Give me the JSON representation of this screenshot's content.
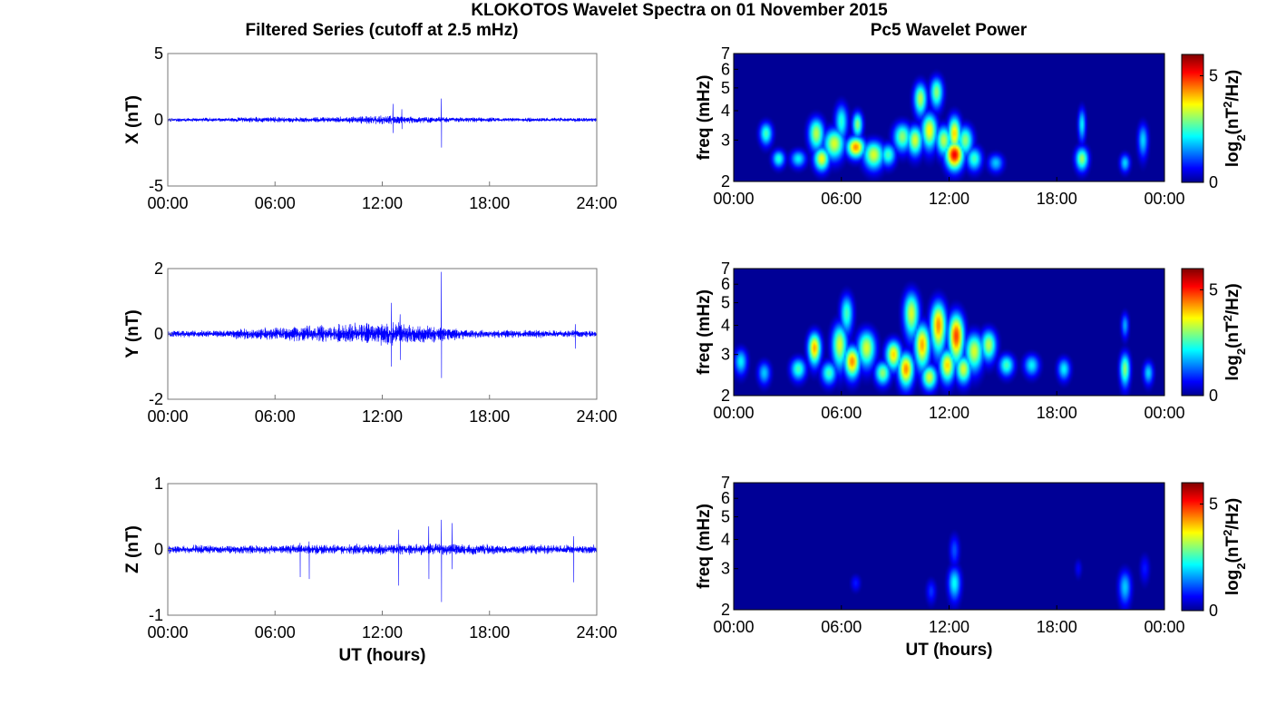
{
  "figure": {
    "title": "KLOKOTOS Wavelet Spectra on 01 November 2015",
    "left_title": "Filtered Series (cutoff at 2.5 mHz)",
    "right_title": "Pc5 Wavelet Power"
  },
  "colors": {
    "trace": "#0000ff",
    "background": "#00008f",
    "axis": "#000000"
  },
  "chart_data": [
    {
      "type": "line",
      "component": "X",
      "ylabel": "X (nT)",
      "xlabel": "",
      "xlim": [
        0,
        24
      ],
      "ylim": [
        -5,
        5
      ],
      "xticks": [
        "00:00",
        "06:00",
        "12:00",
        "18:00",
        "24:00"
      ],
      "yticks": [
        "-5",
        "0",
        "5"
      ],
      "noise_amplitude": 0.15,
      "envelope": [
        [
          0,
          1.0
        ],
        [
          3,
          1.0
        ],
        [
          5,
          1.4
        ],
        [
          8,
          1.2
        ],
        [
          10,
          1.6
        ],
        [
          12,
          2.2
        ],
        [
          14,
          1.6
        ],
        [
          16,
          1.2
        ],
        [
          20,
          1.0
        ],
        [
          24,
          1.0
        ]
      ],
      "spikes": [
        [
          12.6,
          1.2,
          -1.0
        ],
        [
          13.1,
          0.8,
          -0.7
        ],
        [
          15.3,
          1.6,
          -2.1
        ]
      ]
    },
    {
      "type": "line",
      "component": "Y",
      "ylabel": "Y (nT)",
      "xlabel": "",
      "xlim": [
        0,
        24
      ],
      "ylim": [
        -2,
        2
      ],
      "xticks": [
        "00:00",
        "06:00",
        "12:00",
        "18:00",
        "24:00"
      ],
      "yticks": [
        "-2",
        "0",
        "2"
      ],
      "noise_amplitude": 0.1,
      "envelope": [
        [
          0,
          1.0
        ],
        [
          3,
          1.0
        ],
        [
          4,
          1.5
        ],
        [
          6,
          2.0
        ],
        [
          9,
          2.5
        ],
        [
          12,
          3.5
        ],
        [
          14,
          2.8
        ],
        [
          15.5,
          2.0
        ],
        [
          17,
          1.2
        ],
        [
          20,
          1.2
        ],
        [
          24,
          1.0
        ]
      ],
      "spikes": [
        [
          12.5,
          0.95,
          -1.0
        ],
        [
          13.0,
          0.6,
          -0.8
        ],
        [
          15.3,
          1.9,
          -1.35
        ],
        [
          22.8,
          0.3,
          -0.45
        ]
      ]
    },
    {
      "type": "line",
      "component": "Z",
      "ylabel": "Z (nT)",
      "xlabel": "UT (hours)",
      "xlim": [
        0,
        24
      ],
      "ylim": [
        -1,
        1
      ],
      "xticks": [
        "00:00",
        "06:00",
        "12:00",
        "18:00",
        "24:00"
      ],
      "yticks": [
        "-1",
        "0",
        "1"
      ],
      "noise_amplitude": 0.06,
      "envelope": [
        [
          0,
          1.0
        ],
        [
          6,
          1.0
        ],
        [
          12,
          1.3
        ],
        [
          16,
          1.3
        ],
        [
          24,
          1.0
        ]
      ],
      "spikes": [
        [
          7.4,
          0.1,
          -0.42
        ],
        [
          7.9,
          0.12,
          -0.45
        ],
        [
          12.9,
          0.3,
          -0.55
        ],
        [
          14.6,
          0.35,
          -0.45
        ],
        [
          15.3,
          0.45,
          -0.8
        ],
        [
          15.9,
          0.4,
          -0.3
        ],
        [
          22.7,
          0.2,
          -0.5
        ]
      ]
    },
    {
      "type": "heatmap",
      "component": "X",
      "ylabel": "freq (mHz)",
      "xlabel": "",
      "xlim": [
        0,
        24
      ],
      "ylim": [
        2,
        7
      ],
      "y_scale": "log",
      "xticks": [
        "00:00",
        "06:00",
        "12:00",
        "18:00",
        "00:00"
      ],
      "yticks": [
        "2",
        "3",
        "4",
        "5",
        "6",
        "7"
      ],
      "colorbar": {
        "label": "log2(nT2/Hz)",
        "range": [
          0,
          6
        ],
        "ticks": [
          "0",
          "5"
        ],
        "colormap": "jet"
      },
      "blobs": [
        [
          1.8,
          3.2,
          0.25,
          0.25,
          3.0
        ],
        [
          2.5,
          2.5,
          0.25,
          0.15,
          2.8
        ],
        [
          3.6,
          2.5,
          0.3,
          0.15,
          2.5
        ],
        [
          4.6,
          3.2,
          0.3,
          0.35,
          3.8
        ],
        [
          4.9,
          2.5,
          0.3,
          0.2,
          4.2
        ],
        [
          5.6,
          2.9,
          0.4,
          0.3,
          4.0
        ],
        [
          6.0,
          3.6,
          0.25,
          0.45,
          2.8
        ],
        [
          6.8,
          2.8,
          0.35,
          0.2,
          5.0
        ],
        [
          6.9,
          3.5,
          0.2,
          0.3,
          3.5
        ],
        [
          7.8,
          2.6,
          0.4,
          0.25,
          4.0
        ],
        [
          8.6,
          2.6,
          0.3,
          0.2,
          3.0
        ],
        [
          9.4,
          3.1,
          0.35,
          0.3,
          3.5
        ],
        [
          10.1,
          3.0,
          0.3,
          0.3,
          4.0
        ],
        [
          10.4,
          4.5,
          0.25,
          0.5,
          3.8
        ],
        [
          10.9,
          3.3,
          0.3,
          0.4,
          4.3
        ],
        [
          11.3,
          4.8,
          0.25,
          0.5,
          3.5
        ],
        [
          11.7,
          3.0,
          0.3,
          0.3,
          3.8
        ],
        [
          12.3,
          2.6,
          0.35,
          0.25,
          6.0
        ],
        [
          12.3,
          3.2,
          0.25,
          0.4,
          4.5
        ],
        [
          12.9,
          3.0,
          0.3,
          0.3,
          3.5
        ],
        [
          13.4,
          2.5,
          0.3,
          0.2,
          3.0
        ],
        [
          14.6,
          2.4,
          0.3,
          0.15,
          2.2
        ],
        [
          19.4,
          2.5,
          0.25,
          0.2,
          3.6
        ],
        [
          19.4,
          3.5,
          0.15,
          0.4,
          2.5
        ],
        [
          21.8,
          2.4,
          0.2,
          0.15,
          2.3
        ],
        [
          22.8,
          3.0,
          0.2,
          0.35,
          2.3
        ]
      ]
    },
    {
      "type": "heatmap",
      "component": "Y",
      "ylabel": "freq (mHz)",
      "xlabel": "",
      "xlim": [
        0,
        24
      ],
      "ylim": [
        2,
        7
      ],
      "y_scale": "log",
      "xticks": [
        "00:00",
        "06:00",
        "12:00",
        "18:00",
        "00:00"
      ],
      "yticks": [
        "2",
        "3",
        "4",
        "5",
        "6",
        "7"
      ],
      "colorbar": {
        "label": "log2(nT2/Hz)",
        "range": [
          0,
          6
        ],
        "ticks": [
          "0",
          "5"
        ],
        "colormap": "jet"
      },
      "blobs": [
        [
          0.4,
          2.8,
          0.25,
          0.25,
          2.5
        ],
        [
          1.7,
          2.5,
          0.25,
          0.2,
          2.2
        ],
        [
          3.6,
          2.6,
          0.3,
          0.2,
          3.0
        ],
        [
          4.5,
          3.2,
          0.25,
          0.35,
          4.8
        ],
        [
          5.3,
          2.5,
          0.3,
          0.2,
          3.0
        ],
        [
          5.9,
          3.3,
          0.3,
          0.5,
          4.0
        ],
        [
          6.6,
          2.8,
          0.3,
          0.3,
          5.0
        ],
        [
          6.3,
          4.5,
          0.25,
          0.6,
          3.0
        ],
        [
          7.4,
          3.2,
          0.35,
          0.4,
          4.0
        ],
        [
          8.3,
          2.5,
          0.3,
          0.2,
          3.5
        ],
        [
          8.9,
          3.0,
          0.3,
          0.3,
          4.5
        ],
        [
          9.6,
          2.6,
          0.3,
          0.3,
          5.0
        ],
        [
          9.9,
          4.5,
          0.3,
          0.7,
          4.0
        ],
        [
          10.5,
          3.3,
          0.3,
          0.5,
          4.8
        ],
        [
          10.9,
          2.4,
          0.3,
          0.2,
          4.0
        ],
        [
          11.4,
          4.0,
          0.3,
          0.7,
          5.0
        ],
        [
          11.9,
          2.7,
          0.3,
          0.3,
          4.5
        ],
        [
          12.4,
          3.6,
          0.3,
          0.6,
          5.5
        ],
        [
          12.8,
          2.6,
          0.3,
          0.25,
          4.0
        ],
        [
          13.4,
          3.1,
          0.35,
          0.4,
          4.0
        ],
        [
          14.2,
          3.3,
          0.3,
          0.35,
          3.8
        ],
        [
          15.2,
          2.7,
          0.3,
          0.2,
          3.0
        ],
        [
          16.6,
          2.7,
          0.3,
          0.2,
          2.5
        ],
        [
          18.4,
          2.6,
          0.25,
          0.2,
          2.5
        ],
        [
          21.8,
          2.6,
          0.2,
          0.3,
          3.5
        ],
        [
          21.8,
          4.0,
          0.15,
          0.35,
          2.0
        ],
        [
          23.1,
          2.5,
          0.2,
          0.2,
          2.3
        ]
      ]
    },
    {
      "type": "heatmap",
      "component": "Z",
      "ylabel": "freq (mHz)",
      "xlabel": "UT (hours)",
      "xlim": [
        0,
        24
      ],
      "ylim": [
        2,
        7
      ],
      "y_scale": "log",
      "xticks": [
        "00:00",
        "06:00",
        "12:00",
        "18:00",
        "00:00"
      ],
      "yticks": [
        "2",
        "3",
        "4",
        "5",
        "6",
        "7"
      ],
      "colorbar": {
        "label": "log2(nT2/Hz)",
        "range": [
          0,
          6
        ],
        "ticks": [
          "0",
          "5"
        ],
        "colormap": "jet"
      },
      "blobs": [
        [
          6.8,
          2.6,
          0.2,
          0.15,
          1.0
        ],
        [
          11.0,
          2.4,
          0.2,
          0.2,
          1.2
        ],
        [
          12.3,
          2.6,
          0.25,
          0.3,
          2.6
        ],
        [
          12.3,
          3.6,
          0.2,
          0.4,
          1.4
        ],
        [
          21.8,
          2.5,
          0.25,
          0.3,
          2.2
        ],
        [
          19.2,
          3.0,
          0.15,
          0.2,
          0.8
        ],
        [
          22.9,
          3.0,
          0.2,
          0.3,
          1.0
        ]
      ]
    }
  ]
}
